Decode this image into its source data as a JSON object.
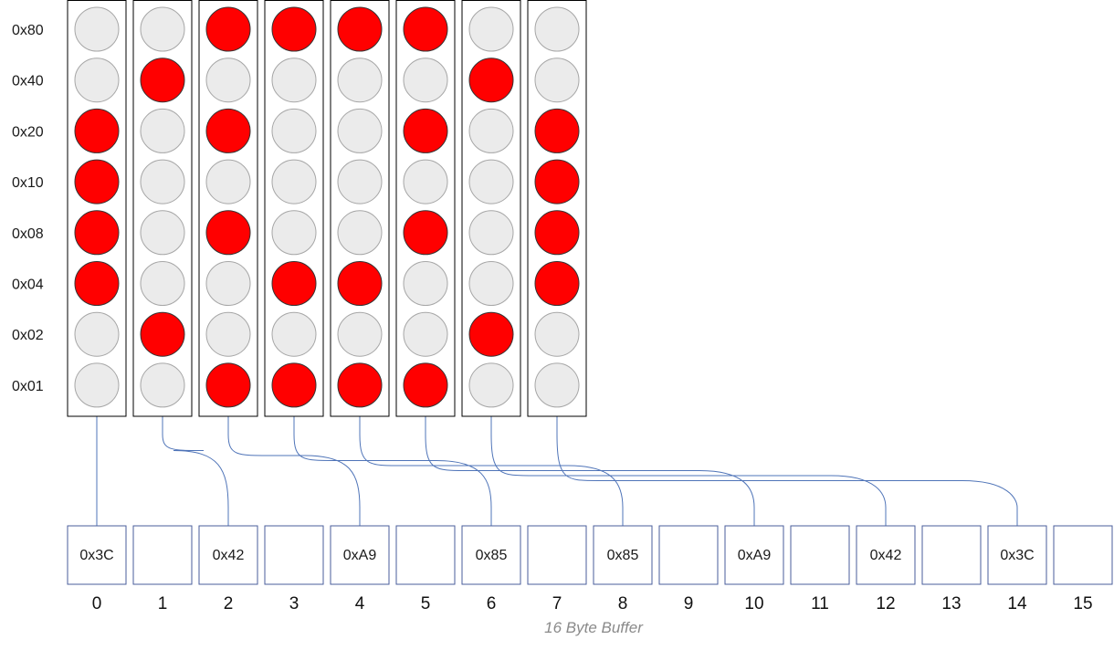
{
  "bit_labels": [
    "0x80",
    "0x40",
    "0x20",
    "0x10",
    "0x08",
    "0x04",
    "0x02",
    "0x01"
  ],
  "columns": [
    {
      "bits": [
        0,
        0,
        1,
        1,
        1,
        1,
        0,
        0
      ],
      "target": 0
    },
    {
      "bits": [
        0,
        1,
        0,
        0,
        0,
        0,
        1,
        0
      ],
      "target": 2
    },
    {
      "bits": [
        1,
        0,
        1,
        0,
        1,
        0,
        0,
        1
      ],
      "target": 4
    },
    {
      "bits": [
        1,
        0,
        0,
        0,
        0,
        1,
        0,
        1
      ],
      "target": 6
    },
    {
      "bits": [
        1,
        0,
        0,
        0,
        0,
        1,
        0,
        1
      ],
      "target": 8
    },
    {
      "bits": [
        1,
        0,
        1,
        0,
        1,
        0,
        0,
        1
      ],
      "target": 10
    },
    {
      "bits": [
        0,
        1,
        0,
        0,
        0,
        0,
        1,
        0
      ],
      "target": 12
    },
    {
      "bits": [
        0,
        0,
        1,
        1,
        1,
        1,
        0,
        0
      ],
      "target": 14
    }
  ],
  "buffer": {
    "cells": [
      "0x3C",
      "",
      "0x42",
      "",
      "0xA9",
      "",
      "0x85",
      "",
      "0x85",
      "",
      "0xA9",
      "",
      "0x42",
      "",
      "0x3C",
      ""
    ],
    "indices": [
      "0",
      "1",
      "2",
      "3",
      "4",
      "5",
      "6",
      "7",
      "8",
      "9",
      "10",
      "11",
      "12",
      "13",
      "14",
      "15"
    ],
    "caption": "16 Byte Buffer"
  },
  "colors": {
    "led_on": "#ff0000",
    "led_off": "#ebebeb",
    "led_on_stroke": "#333333",
    "led_off_stroke": "#a6a6a6",
    "column_stroke": "#000000",
    "buffer_stroke": "#4a5e9b",
    "connector": "#4f74b8"
  }
}
